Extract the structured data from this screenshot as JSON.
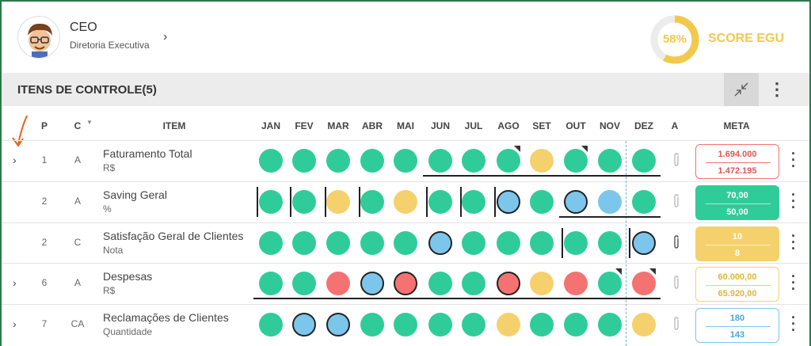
{
  "header": {
    "user_title": "CEO",
    "user_subtitle": "Diretoria Executiva",
    "score_percent": "58%",
    "score_value": 0.58,
    "score_label": "SCORE EGU",
    "score_color": "#f2c94c"
  },
  "section": {
    "title": "ITENS DE CONTROLE(5)"
  },
  "columns": {
    "p": "P",
    "c": "C",
    "item": "ITEM",
    "months": [
      "JAN",
      "FEV",
      "MAR",
      "ABR",
      "MAI",
      "JUN",
      "JUL",
      "AGO",
      "SET",
      "OUT",
      "NOV",
      "DEZ"
    ],
    "a": "A",
    "meta": "META"
  },
  "colors": {
    "green": "#2fcc99",
    "yellow": "#f5d16d",
    "red": "#f57272",
    "blue": "#7cc6ec"
  },
  "rows": [
    {
      "p": "1",
      "c": "A",
      "name": "Faturamento Total",
      "unit": "R$",
      "expandable": true,
      "status": [
        "green",
        "green",
        "green",
        "green",
        "green",
        "green",
        "green",
        "green",
        "yellow",
        "green",
        "green",
        "green"
      ],
      "meta_top": "1.694.000",
      "meta_bottom": "1.472.195",
      "meta_style": "red-outline",
      "attachment": false
    },
    {
      "p": "2",
      "c": "A",
      "name": "Saving Geral",
      "unit": "%",
      "expandable": false,
      "status": [
        "green",
        "green",
        "yellow",
        "green",
        "yellow",
        "green",
        "green",
        "blue",
        "green",
        "blue",
        "blue",
        "green"
      ],
      "meta_top": "70,00",
      "meta_bottom": "50,00",
      "meta_style": "green-fill",
      "attachment": false
    },
    {
      "p": "2",
      "c": "C",
      "name": "Satisfação Geral de Clientes",
      "unit": "Nota",
      "expandable": false,
      "status": [
        "green",
        "green",
        "green",
        "green",
        "green",
        "blue",
        "green",
        "green",
        "green",
        "green",
        "green",
        "blue"
      ],
      "meta_top": "10",
      "meta_bottom": "8",
      "meta_style": "yellow-fill",
      "attachment": true
    },
    {
      "p": "6",
      "c": "A",
      "name": "Despesas",
      "unit": "R$",
      "expandable": true,
      "status": [
        "green",
        "green",
        "red",
        "blue",
        "red",
        "green",
        "green",
        "red",
        "yellow",
        "red",
        "green",
        "red"
      ],
      "meta_top": "60.000,00",
      "meta_bottom": "65.920,00",
      "meta_style": "yellow-outline",
      "attachment": false
    },
    {
      "p": "7",
      "c": "CA",
      "name": "Reclamações de Clientes",
      "unit": "Quantidade",
      "expandable": true,
      "status": [
        "green",
        "blue",
        "blue",
        "green",
        "green",
        "green",
        "green",
        "yellow",
        "green",
        "green",
        "green",
        "yellow"
      ],
      "meta_top": "180",
      "meta_bottom": "143",
      "meta_style": "blue-outline",
      "attachment": false
    }
  ]
}
